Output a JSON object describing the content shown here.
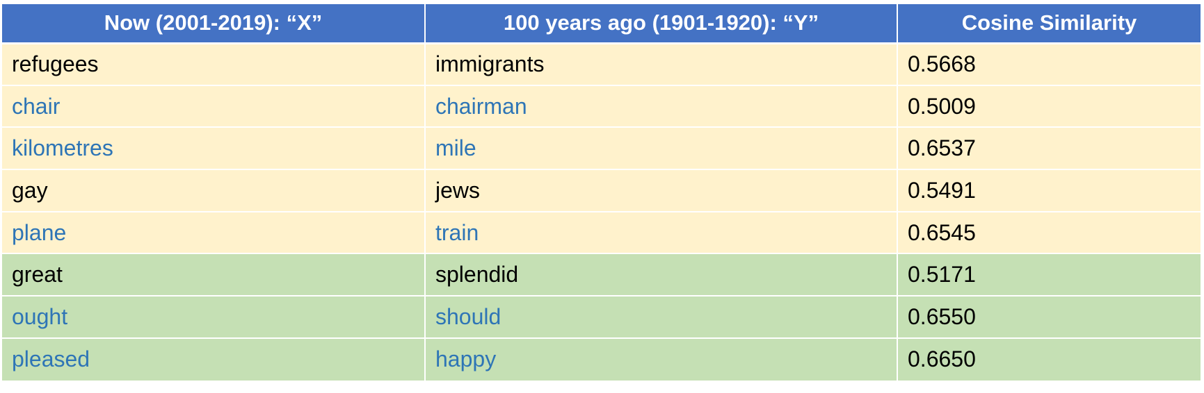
{
  "table": {
    "headers": [
      "Now (2001-2019): “X”",
      "100 years ago (1901-1920): “Y”",
      "Cosine Similarity"
    ],
    "rows": [
      {
        "now": "refugees",
        "past": "immigrants",
        "similarity": "0.5668",
        "group": "yellow",
        "text_color": "black"
      },
      {
        "now": "chair",
        "past": "chairman",
        "similarity": "0.5009",
        "group": "yellow",
        "text_color": "blue"
      },
      {
        "now": "kilometres",
        "past": "mile",
        "similarity": "0.6537",
        "group": "yellow",
        "text_color": "blue"
      },
      {
        "now": "gay",
        "past": "jews",
        "similarity": "0.5491",
        "group": "yellow",
        "text_color": "black"
      },
      {
        "now": "plane",
        "past": "train",
        "similarity": "0.6545",
        "group": "yellow",
        "text_color": "blue"
      },
      {
        "now": "great",
        "past": "splendid",
        "similarity": "0.5171",
        "group": "green",
        "text_color": "black"
      },
      {
        "now": "ought",
        "past": "should",
        "similarity": "0.6550",
        "group": "green",
        "text_color": "blue"
      },
      {
        "now": "pleased",
        "past": "happy",
        "similarity": "0.6650",
        "group": "green",
        "text_color": "blue"
      }
    ]
  },
  "colors": {
    "header_bg": "#4472c4",
    "header_text": "#ffffff",
    "yellow_row_bg": "#fff2cc",
    "green_row_bg": "#c5e0b4",
    "blue_text": "#2e75b6",
    "black_text": "#000000"
  }
}
